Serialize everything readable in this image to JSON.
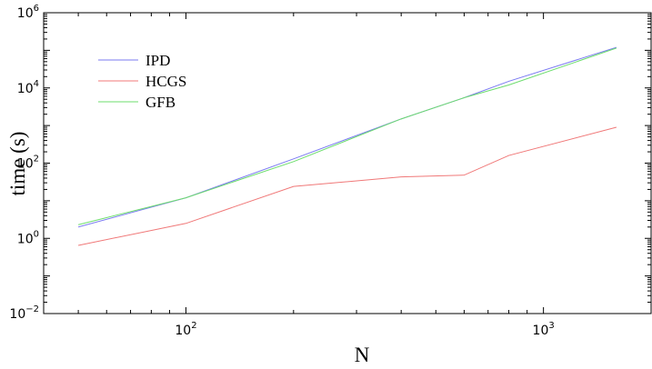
{
  "chart_data": {
    "type": "line",
    "x_scale": "log",
    "y_scale": "log",
    "xlabel": "N",
    "ylabel": "time (s)",
    "xlim": [
      40,
      2000
    ],
    "ylim": [
      0.01,
      1000000
    ],
    "x_ticks": [
      {
        "value": 100,
        "base": "10",
        "exp": "2"
      },
      {
        "value": 1000,
        "base": "10",
        "exp": "3"
      }
    ],
    "y_ticks": [
      {
        "value": 0.01,
        "base": "10",
        "exp": "−2"
      },
      {
        "value": 1,
        "base": "10",
        "exp": "0"
      },
      {
        "value": 100,
        "base": "10",
        "exp": "2"
      },
      {
        "value": 10000,
        "base": "10",
        "exp": "4"
      },
      {
        "value": 1000000,
        "base": "10",
        "exp": "6"
      }
    ],
    "grid": false,
    "legend_position": "top-left",
    "series": [
      {
        "name": "IPD",
        "color": "#7b7bf2",
        "points": [
          [
            50,
            2.0
          ],
          [
            100,
            12
          ],
          [
            200,
            130
          ],
          [
            400,
            1500
          ],
          [
            600,
            5500
          ],
          [
            800,
            15000
          ],
          [
            1600,
            120000
          ]
        ]
      },
      {
        "name": "HCGS",
        "color": "#f07878",
        "points": [
          [
            50,
            0.65
          ],
          [
            100,
            2.5
          ],
          [
            200,
            24
          ],
          [
            400,
            43
          ],
          [
            600,
            48
          ],
          [
            800,
            160
          ],
          [
            1600,
            900
          ]
        ]
      },
      {
        "name": "GFB",
        "color": "#6ddd6d",
        "points": [
          [
            50,
            2.3
          ],
          [
            100,
            12
          ],
          [
            200,
            110
          ],
          [
            400,
            1500
          ],
          [
            600,
            5500
          ],
          [
            800,
            12000
          ],
          [
            1600,
            115000
          ]
        ]
      }
    ]
  }
}
